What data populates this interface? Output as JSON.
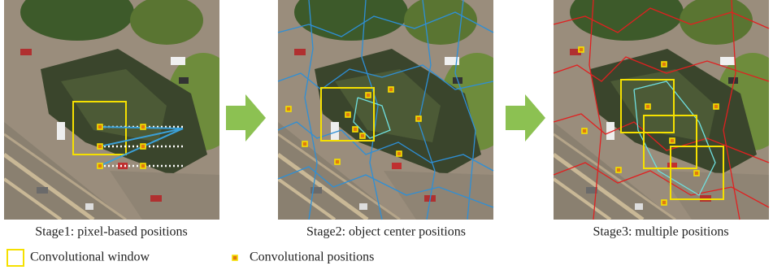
{
  "panels": [
    {
      "caption": "Stage1: pixel-based positions"
    },
    {
      "caption": "Stage2: object center positions"
    },
    {
      "caption": "Stage3: multiple positions"
    }
  ],
  "legend": [
    {
      "label": "Convolutional window"
    },
    {
      "label": "Convolutional positions"
    }
  ]
}
